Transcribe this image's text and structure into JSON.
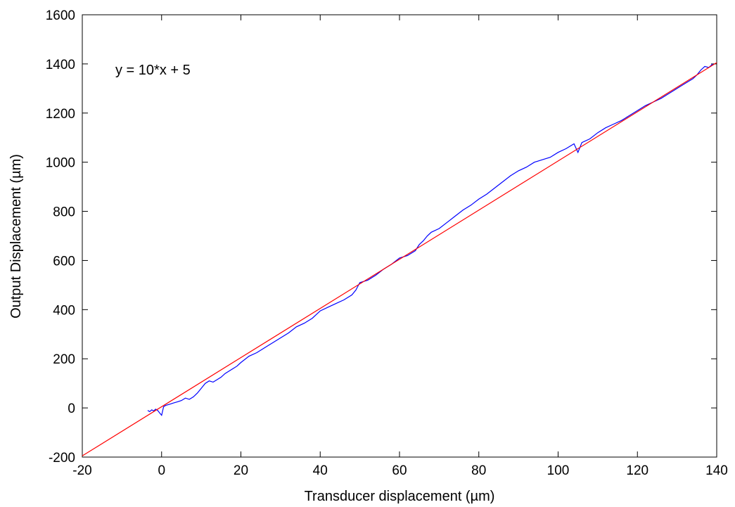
{
  "chart_data": {
    "type": "line",
    "xlabel": "Transducer displacement (µm)",
    "ylabel": "Output Displacement (µm)",
    "xlim": [
      -20,
      140
    ],
    "ylim": [
      -200,
      1600
    ],
    "xticks": [
      "-20",
      "0",
      "20",
      "40",
      "60",
      "80",
      "100",
      "120",
      "140"
    ],
    "yticks": [
      "-200",
      "0",
      "200",
      "400",
      "600",
      "800",
      "1000",
      "1200",
      "1400",
      "1600"
    ],
    "annotation": "y = 10*x + 5",
    "grid": false,
    "series": [
      {
        "color": "#0000ff",
        "style": "measured",
        "x": [
          -3.5,
          -3,
          -2.5,
          -2,
          -1.5,
          -1,
          -0.5,
          0,
          0.5,
          1,
          2,
          3,
          4,
          5,
          6,
          7,
          8,
          9,
          10,
          11,
          12,
          13,
          14,
          15,
          16,
          17,
          18,
          19,
          20,
          22,
          24,
          26,
          28,
          30,
          32,
          34,
          36,
          38,
          40,
          42,
          44,
          46,
          48,
          49,
          50,
          52,
          54,
          56,
          58,
          60,
          62,
          64,
          65,
          66,
          67,
          68,
          70,
          72,
          74,
          76,
          78,
          80,
          82,
          84,
          86,
          88,
          90,
          92,
          94,
          96,
          98,
          100,
          102,
          104,
          105,
          106,
          108,
          110,
          112,
          114,
          116,
          118,
          120,
          122,
          124,
          126,
          128,
          130,
          132,
          134,
          135,
          136,
          137,
          138,
          139
        ],
        "y": [
          -10,
          -15,
          -8,
          -12,
          -5,
          -10,
          -20,
          -30,
          5,
          10,
          15,
          20,
          25,
          30,
          40,
          35,
          45,
          60,
          80,
          100,
          110,
          105,
          115,
          125,
          140,
          150,
          160,
          170,
          185,
          210,
          225,
          245,
          265,
          285,
          305,
          330,
          345,
          365,
          395,
          410,
          425,
          440,
          460,
          480,
          510,
          520,
          540,
          565,
          585,
          610,
          620,
          640,
          665,
          680,
          700,
          715,
          730,
          755,
          780,
          805,
          825,
          850,
          870,
          895,
          920,
          945,
          965,
          980,
          1000,
          1010,
          1020,
          1040,
          1055,
          1075,
          1040,
          1080,
          1095,
          1120,
          1140,
          1155,
          1170,
          1190,
          1210,
          1230,
          1245,
          1260,
          1280,
          1300,
          1320,
          1340,
          1355,
          1375,
          1390,
          1385,
          1400
        ]
      },
      {
        "color": "#ff0000",
        "style": "fit",
        "x": [
          -20,
          140
        ],
        "y": [
          -195,
          1405
        ]
      }
    ]
  }
}
